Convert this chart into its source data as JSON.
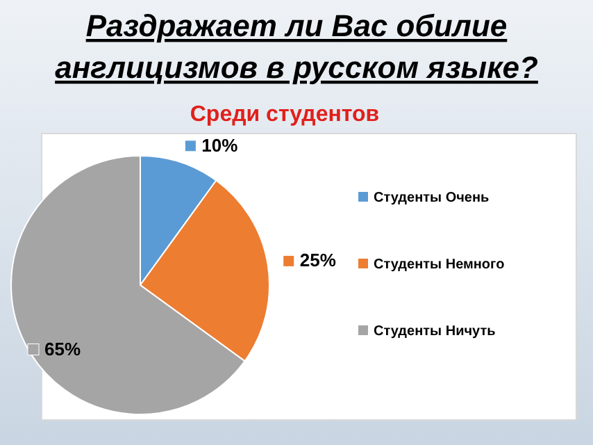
{
  "chart_data": {
    "type": "pie",
    "title": "Раздражает ли Вас обилие англицизмов в русском языке?",
    "subtitle": "Среди студентов",
    "categories": [
      "Студенты Очень",
      "Студенты Немного",
      "Студенты Ничуть"
    ],
    "values": [
      10,
      25,
      65
    ],
    "value_labels": [
      "10%",
      "25%",
      "65%"
    ],
    "colors": [
      "#5b9bd5",
      "#ed7d31",
      "#a5a5a5"
    ],
    "legend": "right"
  }
}
